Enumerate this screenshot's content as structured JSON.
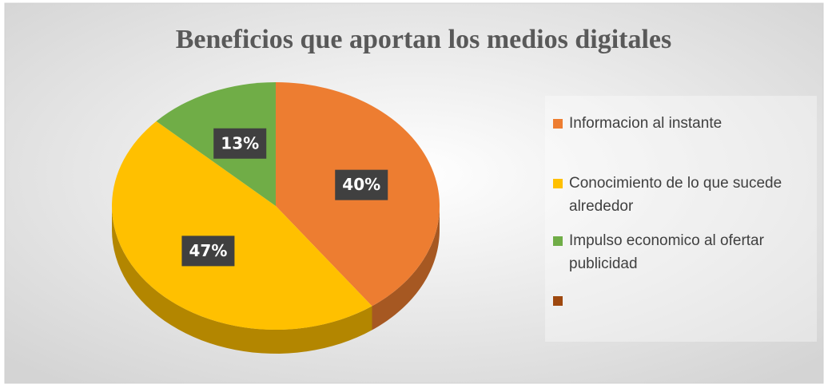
{
  "chart_data": {
    "type": "pie3d",
    "title": "Beneficios que aportan los medios digitales",
    "categories": [
      "Informacion al instante",
      "Conocimiento de lo que sucede alrededor",
      "Impulso economico al ofertar publicidad",
      null
    ],
    "values": [
      40,
      47,
      13,
      0
    ],
    "value_labels": [
      "40%",
      "47%",
      "13%",
      null
    ],
    "colors": [
      "#ed7d31",
      "#ffc000",
      "#70ad47",
      "#9e480e"
    ],
    "legend": "right"
  }
}
